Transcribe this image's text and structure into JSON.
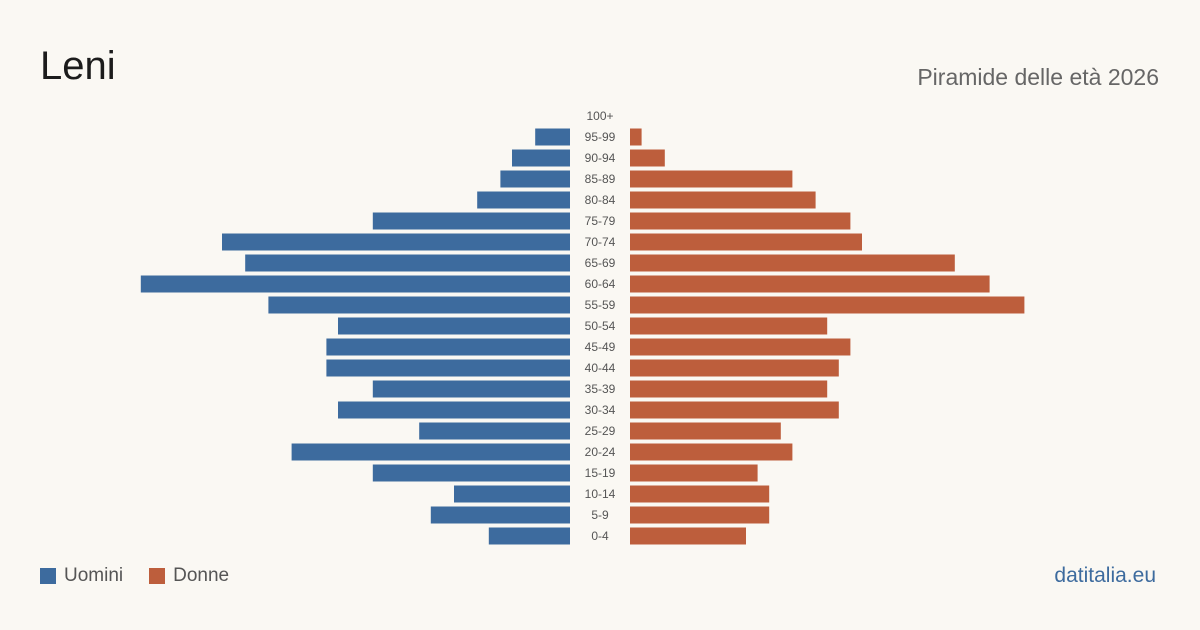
{
  "header": {
    "title": "Leni",
    "subtitle": "Piramide delle età 2026"
  },
  "legend": {
    "items": [
      {
        "label": "Uomini",
        "color": "#3d6b9e"
      },
      {
        "label": "Donne",
        "color": "#bd5e3c"
      }
    ]
  },
  "footer": {
    "brand": "datitalia.eu"
  },
  "chart_data": {
    "type": "bar",
    "orientation": "horizontal-pyramid",
    "categories": [
      "100+",
      "95-99",
      "90-94",
      "85-89",
      "80-84",
      "75-79",
      "70-74",
      "65-69",
      "60-64",
      "55-59",
      "50-54",
      "45-49",
      "40-44",
      "35-39",
      "30-34",
      "25-29",
      "20-24",
      "15-19",
      "10-14",
      "5-9",
      "0-4"
    ],
    "series": [
      {
        "name": "Uomini",
        "color": "#3d6b9e",
        "values": [
          0,
          3,
          5,
          6,
          8,
          17,
          30,
          28,
          37,
          26,
          20,
          21,
          21,
          17,
          20,
          13,
          24,
          17,
          10,
          12,
          7
        ]
      },
      {
        "name": "Donne",
        "color": "#bd5e3c",
        "values": [
          0,
          1,
          3,
          14,
          16,
          19,
          20,
          28,
          31,
          34,
          17,
          19,
          18,
          17,
          18,
          13,
          14,
          11,
          12,
          12,
          10
        ]
      }
    ]
  }
}
